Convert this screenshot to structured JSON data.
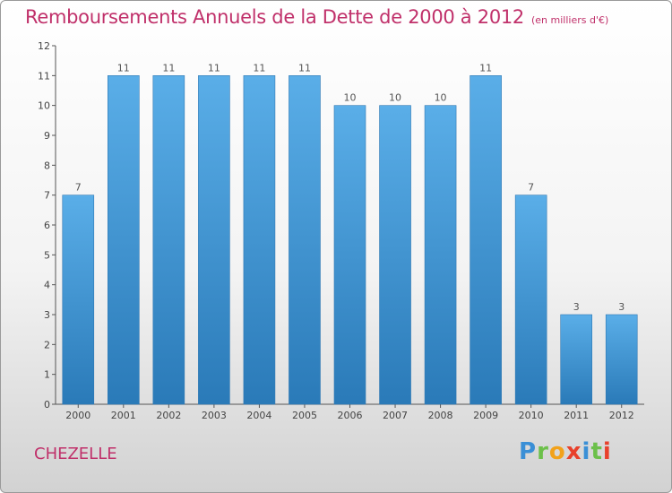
{
  "header": {
    "title": "Remboursements Annuels de la Dette de 2000 à 2012",
    "unit": "(en milliers d'€)"
  },
  "footer": {
    "commune": "CHEZELLE",
    "logo": "Proxiti",
    "logo_letters": [
      "P",
      "r",
      "o",
      "x",
      "i",
      "t",
      "i"
    ]
  },
  "colors": {
    "bar_top": "#5aaee8",
    "bar_bottom": "#2a7ab8",
    "title": "#c0306a",
    "axis": "#555555"
  },
  "chart_data": {
    "type": "bar",
    "categories": [
      "2000",
      "2001",
      "2002",
      "2003",
      "2004",
      "2005",
      "2006",
      "2007",
      "2008",
      "2009",
      "2010",
      "2011",
      "2012"
    ],
    "values": [
      7,
      11,
      11,
      11,
      11,
      11,
      10,
      10,
      10,
      11,
      7,
      3,
      3
    ],
    "data_labels": [
      "7",
      "11",
      "11",
      "11",
      "11",
      "11",
      "10",
      "10",
      "10",
      "11",
      "7",
      "3",
      "3"
    ],
    "yticks": [
      "0",
      "1",
      "2",
      "3",
      "4",
      "5",
      "6",
      "7",
      "8",
      "9",
      "10",
      "11",
      "12"
    ],
    "ylim": [
      0,
      12
    ],
    "grid": false,
    "legend": "none"
  }
}
